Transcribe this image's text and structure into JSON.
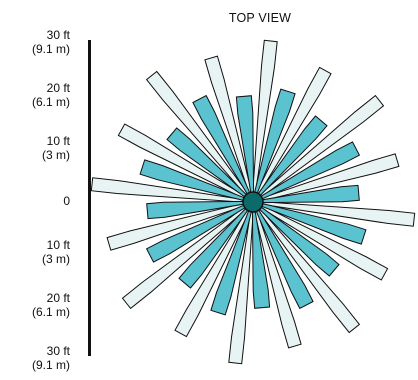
{
  "title": "TOP VIEW",
  "scale": {
    "labels": [
      {
        "main": "30 ft",
        "sub": "(9.1 m)"
      },
      {
        "main": "20 ft",
        "sub": "(6.1 m)"
      },
      {
        "main": "10 ft",
        "sub": "(3 m)"
      },
      {
        "main": "0",
        "sub": ""
      },
      {
        "main": "10 ft",
        "sub": "(3 m)"
      },
      {
        "main": "20 ft",
        "sub": "(6.1 m)"
      },
      {
        "main": "30 ft",
        "sub": "(9.1 m)"
      }
    ]
  },
  "pattern": {
    "beam_count": 32,
    "long_beam_color": "#e8f4f4",
    "short_beam_color": "#5bc2d0",
    "outline_color": "#111111",
    "hub_color": "#0b6a6a"
  }
}
